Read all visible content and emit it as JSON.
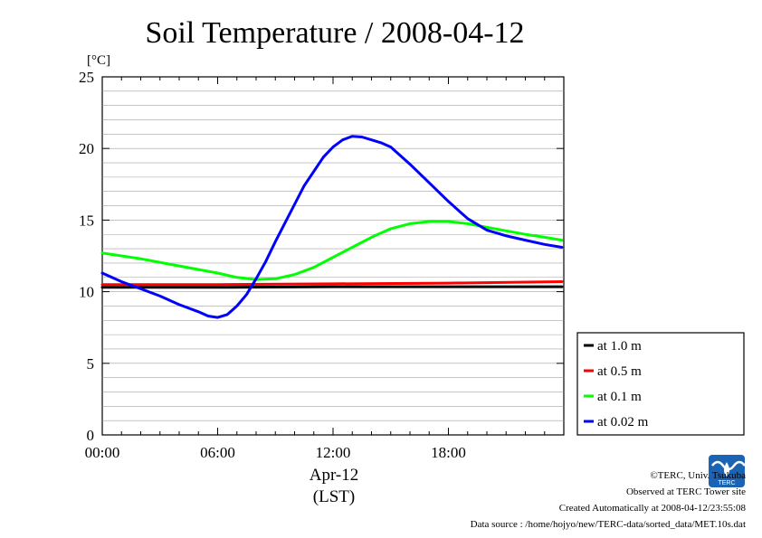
{
  "chart_data": {
    "type": "line",
    "title": "Soil Temperature / 2008-04-12",
    "ylabel": "[°C]",
    "xlabel_date": "Apr-12",
    "xlabel_zone": "(LST)",
    "xlim": [
      0,
      24
    ],
    "ylim": [
      0,
      25
    ],
    "x_ticks": [
      0,
      6,
      12,
      18
    ],
    "x_tick_labels": [
      "00:00",
      "06:00",
      "12:00",
      "18:00"
    ],
    "y_ticks": [
      0,
      5,
      10,
      15,
      20,
      25
    ],
    "y_tick_labels": [
      "0",
      "5",
      "10",
      "15",
      "20",
      "25"
    ],
    "grid": "horizontal minor every 1 °C",
    "legend_position": "right-bottom",
    "series": [
      {
        "name": "at 1.0 m",
        "color": "#000000",
        "x": [
          0,
          6,
          12,
          18,
          23.9
        ],
        "values": [
          10.3,
          10.3,
          10.35,
          10.35,
          10.35
        ]
      },
      {
        "name": "at 0.5 m",
        "color": "#ff0000",
        "x": [
          0,
          6,
          12,
          18,
          23.9
        ],
        "values": [
          10.5,
          10.5,
          10.55,
          10.6,
          10.7
        ]
      },
      {
        "name": "at 0.1 m",
        "color": "#00ff00",
        "x": [
          0,
          2,
          4,
          6,
          7,
          8,
          9,
          10,
          11,
          12,
          13,
          14,
          15,
          16,
          17,
          18,
          19,
          20,
          21,
          22,
          23,
          23.9
        ],
        "values": [
          12.7,
          12.3,
          11.8,
          11.3,
          11.0,
          10.85,
          10.9,
          11.2,
          11.7,
          12.4,
          13.1,
          13.8,
          14.4,
          14.75,
          14.9,
          14.9,
          14.75,
          14.5,
          14.25,
          14.0,
          13.8,
          13.6
        ]
      },
      {
        "name": "at 0.02 m",
        "color": "#0000ff",
        "x": [
          0,
          1,
          2,
          3,
          4,
          5,
          5.5,
          6,
          6.5,
          7,
          7.5,
          8,
          8.5,
          9,
          9.5,
          10,
          10.5,
          11,
          11.5,
          12,
          12.5,
          13,
          13.5,
          14,
          14.5,
          15,
          16,
          17,
          18,
          19,
          20,
          21,
          22,
          23,
          23.9
        ],
        "values": [
          11.3,
          10.7,
          10.2,
          9.7,
          9.1,
          8.6,
          8.3,
          8.2,
          8.4,
          9.0,
          9.8,
          10.9,
          12.1,
          13.5,
          14.8,
          16.1,
          17.4,
          18.4,
          19.4,
          20.1,
          20.6,
          20.85,
          20.8,
          20.6,
          20.4,
          20.1,
          18.9,
          17.6,
          16.3,
          15.1,
          14.3,
          13.9,
          13.6,
          13.3,
          13.1
        ]
      }
    ]
  },
  "credits": {
    "copyright": "©TERC, Univ. Tsukuba",
    "site": "Observed at TERC Tower site",
    "created": "Created Automatically at 2008-04-12/23:55:08",
    "source": "Data source : /home/hojyo/new/TERC-data/sorted_data/MET.10s.dat"
  },
  "logo": {
    "text": "TERC",
    "color": "#1a63b5"
  }
}
